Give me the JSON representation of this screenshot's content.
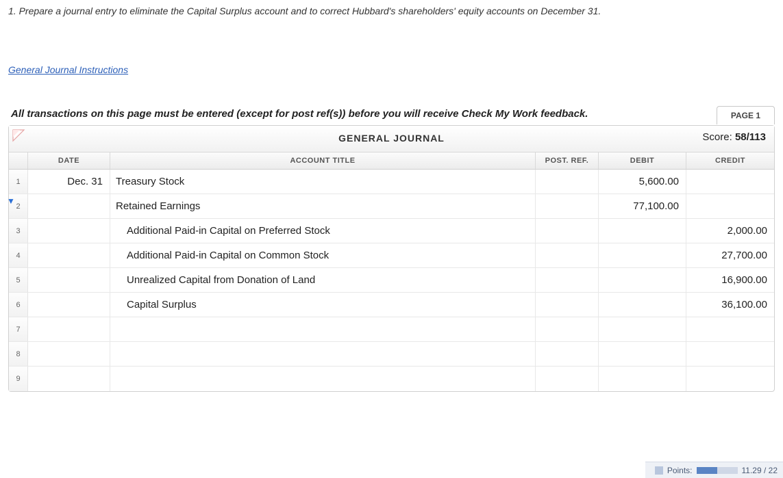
{
  "question": {
    "text": "1. Prepare a journal entry to eliminate the Capital Surplus account and to correct Hubbard's shareholders' equity accounts on December 31."
  },
  "link": {
    "label": "General Journal Instructions"
  },
  "feedback_note": "All transactions on this page must be entered (except for post ref(s)) before you will receive Check My Work feedback.",
  "page_tab": "PAGE 1",
  "journal": {
    "title": "GENERAL JOURNAL",
    "score_label": "Score:",
    "score_value": "58/113",
    "columns": {
      "date": "DATE",
      "account": "ACCOUNT TITLE",
      "postref": "POST. REF.",
      "debit": "DEBIT",
      "credit": "CREDIT"
    },
    "rows": [
      {
        "n": "1",
        "date": "Dec. 31",
        "account": "Treasury Stock",
        "indent": false,
        "postref": "",
        "debit": "5,600.00",
        "credit": ""
      },
      {
        "n": "2",
        "date": "",
        "account": "Retained Earnings",
        "indent": false,
        "postref": "",
        "debit": "77,100.00",
        "credit": ""
      },
      {
        "n": "3",
        "date": "",
        "account": "Additional Paid-in Capital on Preferred Stock",
        "indent": true,
        "postref": "",
        "debit": "",
        "credit": "2,000.00"
      },
      {
        "n": "4",
        "date": "",
        "account": "Additional Paid-in Capital on Common Stock",
        "indent": true,
        "postref": "",
        "debit": "",
        "credit": "27,700.00"
      },
      {
        "n": "5",
        "date": "",
        "account": "Unrealized Capital from Donation of Land",
        "indent": true,
        "postref": "",
        "debit": "",
        "credit": "16,900.00"
      },
      {
        "n": "6",
        "date": "",
        "account": "Capital Surplus",
        "indent": true,
        "postref": "",
        "debit": "",
        "credit": "36,100.00"
      },
      {
        "n": "7",
        "date": "",
        "account": "",
        "indent": false,
        "postref": "",
        "debit": "",
        "credit": ""
      },
      {
        "n": "8",
        "date": "",
        "account": "",
        "indent": false,
        "postref": "",
        "debit": "",
        "credit": ""
      },
      {
        "n": "9",
        "date": "",
        "account": "",
        "indent": false,
        "postref": "",
        "debit": "",
        "credit": ""
      }
    ]
  },
  "points": {
    "label": "Points:",
    "value": "11.29 / 22",
    "progress_pct": 51
  },
  "colors": {
    "link": "#2c5fb8",
    "header_grad_top": "#ffffff",
    "header_grad_bot": "#f1f1f1",
    "border": "#d0d0d0",
    "points_bg": "#eef1f6",
    "progress_fill": "#5a84c4"
  }
}
